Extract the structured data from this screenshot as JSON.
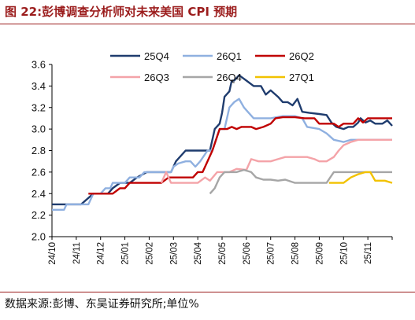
{
  "figure": {
    "title": "图 22:彭博调查分析师对未来美国 CPI 预期",
    "source": "数据来源:彭博、东吴证券研究所;单位%"
  },
  "chart_data": {
    "type": "line",
    "x": [
      "24/10",
      "24/11",
      "24/12",
      "25/01",
      "25/02",
      "25/03",
      "25/04",
      "25/05",
      "25/06",
      "25/07",
      "25/08",
      "25/09",
      "25/10",
      "25/11"
    ],
    "ylim": [
      2.0,
      3.6
    ],
    "yticks": [
      2.0,
      2.2,
      2.4,
      2.6,
      2.8,
      3.0,
      3.2,
      3.4,
      3.6
    ],
    "xlim": [
      0,
      14
    ],
    "grid": false,
    "legend": "top",
    "series": [
      {
        "name": "25Q4",
        "color": "#1f3c6e",
        "points": [
          [
            0.0,
            2.3
          ],
          [
            1.2,
            2.3
          ],
          [
            1.7,
            2.4
          ],
          [
            2.0,
            2.4
          ],
          [
            2.3,
            2.4
          ],
          [
            2.5,
            2.45
          ],
          [
            2.8,
            2.5
          ],
          [
            3.2,
            2.5
          ],
          [
            3.5,
            2.55
          ],
          [
            3.9,
            2.6
          ],
          [
            4.9,
            2.6
          ],
          [
            5.1,
            2.7
          ],
          [
            5.5,
            2.8
          ],
          [
            6.5,
            2.8
          ],
          [
            6.7,
            3.0
          ],
          [
            6.9,
            3.05
          ],
          [
            7.0,
            3.15
          ],
          [
            7.1,
            3.3
          ],
          [
            7.3,
            3.35
          ],
          [
            7.4,
            3.45
          ],
          [
            7.5,
            3.45
          ],
          [
            7.7,
            3.5
          ],
          [
            8.0,
            3.45
          ],
          [
            8.3,
            3.4
          ],
          [
            8.6,
            3.4
          ],
          [
            8.8,
            3.32
          ],
          [
            9.0,
            3.36
          ],
          [
            9.3,
            3.3
          ],
          [
            9.5,
            3.25
          ],
          [
            9.7,
            3.25
          ],
          [
            9.9,
            3.22
          ],
          [
            10.1,
            3.28
          ],
          [
            10.3,
            3.16
          ],
          [
            10.6,
            3.15
          ],
          [
            11.0,
            3.14
          ],
          [
            11.3,
            3.13
          ],
          [
            11.5,
            3.06
          ],
          [
            11.7,
            3.02
          ],
          [
            12.0,
            3.0
          ],
          [
            12.2,
            3.02
          ],
          [
            12.4,
            3.02
          ],
          [
            12.6,
            3.06
          ],
          [
            12.7,
            3.1
          ],
          [
            12.9,
            3.06
          ],
          [
            13.1,
            3.08
          ],
          [
            13.3,
            3.05
          ],
          [
            13.6,
            3.05
          ],
          [
            13.8,
            3.08
          ],
          [
            14.0,
            3.03
          ]
        ]
      },
      {
        "name": "26Q1",
        "color": "#8fb0e0",
        "points": [
          [
            0.0,
            2.25
          ],
          [
            0.5,
            2.25
          ],
          [
            0.6,
            2.3
          ],
          [
            1.5,
            2.3
          ],
          [
            1.7,
            2.4
          ],
          [
            2.0,
            2.4
          ],
          [
            2.2,
            2.45
          ],
          [
            2.4,
            2.45
          ],
          [
            2.5,
            2.5
          ],
          [
            3.0,
            2.5
          ],
          [
            3.2,
            2.55
          ],
          [
            3.6,
            2.55
          ],
          [
            3.8,
            2.6
          ],
          [
            4.5,
            2.6
          ],
          [
            4.9,
            2.6
          ],
          [
            5.0,
            2.65
          ],
          [
            5.2,
            2.68
          ],
          [
            5.5,
            2.7
          ],
          [
            5.7,
            2.7
          ],
          [
            5.9,
            2.65
          ],
          [
            6.1,
            2.7
          ],
          [
            6.4,
            2.8
          ],
          [
            6.6,
            2.8
          ],
          [
            6.9,
            3.0
          ],
          [
            7.1,
            3.0
          ],
          [
            7.3,
            3.2
          ],
          [
            7.5,
            3.25
          ],
          [
            7.7,
            3.28
          ],
          [
            7.9,
            3.2
          ],
          [
            8.1,
            3.15
          ],
          [
            8.3,
            3.1
          ],
          [
            9.0,
            3.1
          ],
          [
            9.5,
            3.12
          ],
          [
            10.0,
            3.12
          ],
          [
            10.3,
            3.1
          ],
          [
            10.5,
            3.02
          ],
          [
            11.0,
            3.0
          ],
          [
            11.3,
            2.96
          ],
          [
            11.6,
            2.9
          ],
          [
            12.0,
            2.88
          ],
          [
            12.3,
            2.9
          ],
          [
            12.5,
            2.9
          ],
          [
            13.3,
            2.9
          ],
          [
            14.0,
            2.9
          ]
        ]
      },
      {
        "name": "26Q2",
        "color": "#c00000",
        "points": [
          [
            1.5,
            2.4
          ],
          [
            2.5,
            2.4
          ],
          [
            2.8,
            2.45
          ],
          [
            3.0,
            2.45
          ],
          [
            3.2,
            2.5
          ],
          [
            4.5,
            2.5
          ],
          [
            4.8,
            2.55
          ],
          [
            5.5,
            2.55
          ],
          [
            5.8,
            2.55
          ],
          [
            6.0,
            2.6
          ],
          [
            6.2,
            2.6
          ],
          [
            6.4,
            2.7
          ],
          [
            6.6,
            2.8
          ],
          [
            6.9,
            3.0
          ],
          [
            7.2,
            3.0
          ],
          [
            7.4,
            3.02
          ],
          [
            7.6,
            3.0
          ],
          [
            7.8,
            3.02
          ],
          [
            8.2,
            3.02
          ],
          [
            8.4,
            3.0
          ],
          [
            8.7,
            3.02
          ],
          [
            9.0,
            3.05
          ],
          [
            9.2,
            3.1
          ],
          [
            9.5,
            3.11
          ],
          [
            10.0,
            3.11
          ],
          [
            10.4,
            3.1
          ],
          [
            10.8,
            3.1
          ],
          [
            11.0,
            3.05
          ],
          [
            11.3,
            3.05
          ],
          [
            11.6,
            3.05
          ],
          [
            11.8,
            3.02
          ],
          [
            12.0,
            3.05
          ],
          [
            12.2,
            3.05
          ],
          [
            12.4,
            3.05
          ],
          [
            12.6,
            3.1
          ],
          [
            12.8,
            3.06
          ],
          [
            13.0,
            3.1
          ],
          [
            13.5,
            3.1
          ],
          [
            14.0,
            3.1
          ]
        ]
      },
      {
        "name": "26Q3",
        "color": "#f4a3a8",
        "points": [
          [
            4.5,
            2.5
          ],
          [
            4.7,
            2.6
          ],
          [
            4.9,
            2.5
          ],
          [
            6.0,
            2.5
          ],
          [
            6.3,
            2.55
          ],
          [
            6.5,
            2.52
          ],
          [
            6.8,
            2.6
          ],
          [
            7.3,
            2.6
          ],
          [
            7.6,
            2.63
          ],
          [
            8.0,
            2.62
          ],
          [
            8.2,
            2.72
          ],
          [
            8.5,
            2.7
          ],
          [
            9.0,
            2.7
          ],
          [
            9.3,
            2.72
          ],
          [
            9.6,
            2.74
          ],
          [
            10.0,
            2.74
          ],
          [
            10.5,
            2.74
          ],
          [
            10.8,
            2.72
          ],
          [
            11.0,
            2.7
          ],
          [
            11.3,
            2.7
          ],
          [
            11.6,
            2.74
          ],
          [
            11.8,
            2.8
          ],
          [
            12.0,
            2.85
          ],
          [
            12.3,
            2.88
          ],
          [
            12.6,
            2.9
          ],
          [
            14.0,
            2.9
          ]
        ]
      },
      {
        "name": "26Q4",
        "color": "#a6a6a6",
        "points": [
          [
            6.5,
            2.4
          ],
          [
            6.7,
            2.45
          ],
          [
            6.9,
            2.55
          ],
          [
            7.1,
            2.6
          ],
          [
            7.6,
            2.6
          ],
          [
            7.9,
            2.62
          ],
          [
            8.2,
            2.6
          ],
          [
            8.4,
            2.55
          ],
          [
            8.7,
            2.53
          ],
          [
            9.0,
            2.53
          ],
          [
            9.3,
            2.52
          ],
          [
            9.6,
            2.53
          ],
          [
            10.0,
            2.5
          ],
          [
            10.5,
            2.5
          ],
          [
            11.0,
            2.5
          ],
          [
            11.3,
            2.5
          ],
          [
            11.6,
            2.6
          ],
          [
            12.0,
            2.6
          ],
          [
            14.0,
            2.6
          ]
        ]
      },
      {
        "name": "27Q1",
        "color": "#f2c200",
        "points": [
          [
            11.4,
            2.5
          ],
          [
            12.0,
            2.5
          ],
          [
            12.3,
            2.55
          ],
          [
            12.6,
            2.58
          ],
          [
            12.9,
            2.6
          ],
          [
            13.1,
            2.6
          ],
          [
            13.3,
            2.52
          ],
          [
            13.7,
            2.52
          ],
          [
            14.0,
            2.5
          ]
        ]
      }
    ]
  }
}
